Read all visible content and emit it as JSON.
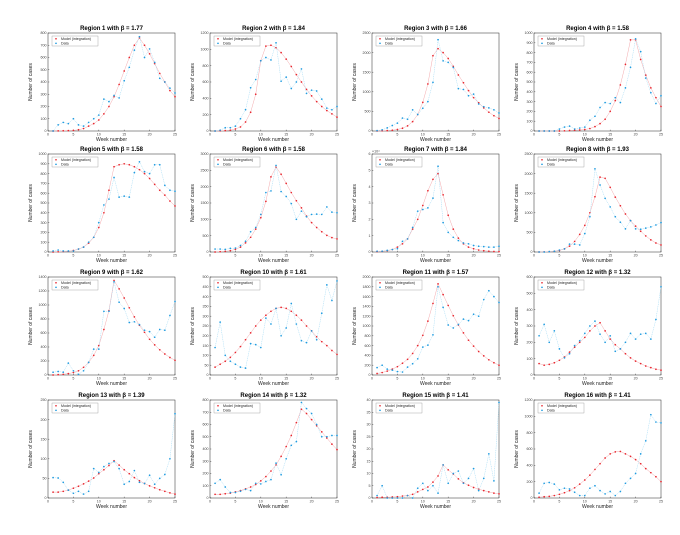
{
  "chart_data": {
    "type": "scatter",
    "layout": "4x4 grid of subplots",
    "xlabel": "Week number",
    "ylabel": "Number of cases",
    "legend": [
      "Model (integration)",
      "Data"
    ],
    "legend_placement": "top-left",
    "colors": {
      "model": "#e8262e",
      "data": "#1f9be0",
      "model_line": "#f2a0a4",
      "data_line": "#8fd2f2"
    },
    "xlim": [
      0,
      25
    ],
    "xticks": [
      0,
      5,
      10,
      15,
      20,
      25
    ],
    "panels": [
      {
        "title": "Region 1 with β = 1.77",
        "ylim": [
          0,
          800
        ],
        "ystep": 100,
        "model": [
          0,
          1,
          2,
          3,
          5,
          10,
          20,
          40,
          60,
          90,
          140,
          200,
          280,
          380,
          490,
          600,
          700,
          760,
          700,
          630,
          550,
          470,
          400,
          330,
          280
        ],
        "data": [
          0,
          50,
          70,
          60,
          100,
          50,
          40,
          70,
          100,
          130,
          260,
          240,
          290,
          270,
          410,
          520,
          660,
          770,
          600,
          670,
          560,
          430,
          400,
          350,
          310
        ]
      },
      {
        "title": "Region 2 with β = 1.84",
        "ylim": [
          0,
          1200
        ],
        "ystep": 200,
        "model": [
          0,
          2,
          5,
          10,
          25,
          50,
          110,
          230,
          450,
          860,
          1040,
          1050,
          1020,
          960,
          880,
          790,
          690,
          600,
          510,
          430,
          360,
          300,
          250,
          210,
          170
        ],
        "data": [
          0,
          10,
          40,
          40,
          60,
          150,
          260,
          530,
          630,
          860,
          900,
          870,
          1080,
          610,
          660,
          520,
          600,
          760,
          460,
          500,
          490,
          390,
          280,
          260,
          300
        ]
      },
      {
        "title": "Region 3 with β = 1.66",
        "ylim": [
          0,
          2500
        ],
        "ystep": 500,
        "model": [
          0,
          5,
          10,
          20,
          40,
          70,
          130,
          240,
          420,
          730,
          1200,
          1920,
          2100,
          2000,
          1850,
          1650,
          1430,
          1230,
          1030,
          850,
          720,
          590,
          480,
          390,
          320
        ],
        "data": [
          10,
          30,
          80,
          140,
          200,
          330,
          300,
          540,
          420,
          580,
          750,
          1240,
          2330,
          1790,
          1750,
          1620,
          1080,
          1060,
          900,
          940,
          690,
          620,
          590,
          540,
          460
        ]
      },
      {
        "title": "Region 4 with β = 1.58",
        "ylim": [
          0,
          1000
        ],
        "ystep": 100,
        "model": [
          0,
          0,
          0,
          0,
          0,
          2,
          5,
          8,
          10,
          15,
          25,
          45,
          75,
          120,
          200,
          310,
          470,
          680,
          930,
          930,
          730,
          570,
          440,
          340,
          250
        ],
        "data": [
          0,
          0,
          0,
          0,
          20,
          40,
          50,
          20,
          30,
          40,
          110,
          150,
          240,
          290,
          280,
          340,
          290,
          440,
          650,
          940,
          810,
          540,
          390,
          280,
          360
        ]
      },
      {
        "title": "Region 5 with β = 1.58",
        "ylim": [
          0,
          1000
        ],
        "ystep": 100,
        "model": [
          0,
          2,
          5,
          8,
          15,
          30,
          50,
          90,
          150,
          250,
          400,
          630,
          870,
          890,
          900,
          890,
          870,
          840,
          800,
          750,
          690,
          630,
          580,
          520,
          470
        ],
        "data": [
          10,
          20,
          10,
          10,
          10,
          30,
          50,
          100,
          150,
          300,
          480,
          540,
          760,
          560,
          570,
          560,
          810,
          920,
          820,
          800,
          890,
          890,
          680,
          630,
          620
        ]
      },
      {
        "title": "Region 6 with β = 1.58",
        "ylim": [
          0,
          3000
        ],
        "ystep": 500,
        "model": [
          0,
          10,
          20,
          40,
          80,
          150,
          280,
          450,
          700,
          1050,
          1550,
          2300,
          2600,
          2380,
          2100,
          1820,
          1570,
          1350,
          1100,
          900,
          750,
          620,
          510,
          440,
          400
        ],
        "data": [
          90,
          90,
          80,
          110,
          120,
          200,
          330,
          620,
          750,
          1150,
          1820,
          1870,
          2650,
          1850,
          1700,
          1480,
          1000,
          1250,
          1080,
          1150,
          1160,
          1150,
          1380,
          1220,
          1200
        ]
      },
      {
        "title": "Region 7 with β = 1.84",
        "ylim": [
          0,
          6
        ],
        "ystep": 1,
        "yexponent": "×10⁴",
        "model": [
          0.02,
          0.04,
          0.08,
          0.15,
          0.3,
          0.5,
          0.8,
          1.4,
          2.0,
          2.85,
          3.75,
          4.45,
          4.8,
          3.5,
          2.25,
          1.4,
          0.85,
          0.5,
          0.3,
          0.2,
          0.12,
          0.08,
          0.05,
          0.03,
          0.02
        ],
        "data": [
          0.05,
          0.05,
          0.1,
          0.15,
          0.2,
          0.65,
          0.8,
          1.5,
          2.5,
          2.6,
          2.7,
          3.3,
          5.25,
          1.8,
          1.2,
          0.9,
          0.7,
          0.55,
          0.5,
          0.4,
          0.35,
          0.33,
          0.3,
          0.3,
          0.35
        ]
      },
      {
        "title": "Region 8 with β = 1.93",
        "ylim": [
          0,
          2500
        ],
        "ystep": 500,
        "model": [
          0,
          5,
          10,
          20,
          40,
          80,
          150,
          270,
          450,
          680,
          1000,
          1410,
          1910,
          1880,
          1650,
          1400,
          1180,
          970,
          800,
          660,
          530,
          410,
          310,
          230,
          180
        ],
        "data": [
          0,
          0,
          10,
          20,
          50,
          80,
          200,
          200,
          180,
          470,
          900,
          2120,
          1710,
          1370,
          1150,
          900,
          760,
          590,
          800,
          590,
          580,
          610,
          640,
          690,
          750
        ]
      },
      {
        "title": "Region 9 with β = 1.62",
        "ylim": [
          0,
          1400
        ],
        "ystep": 200,
        "model": [
          0,
          5,
          10,
          20,
          35,
          60,
          110,
          180,
          280,
          420,
          650,
          920,
          1350,
          1230,
          1100,
          960,
          830,
          710,
          610,
          510,
          430,
          360,
          300,
          250,
          210
        ],
        "data": [
          40,
          50,
          40,
          170,
          60,
          10,
          60,
          180,
          370,
          370,
          910,
          910,
          1330,
          1040,
          950,
          750,
          760,
          720,
          640,
          620,
          540,
          650,
          640,
          850,
          1050
        ]
      },
      {
        "title": "Region 10 with β = 1.61",
        "ylim": [
          0,
          500
        ],
        "ystep": 50,
        "model": [
          40,
          55,
          70,
          90,
          115,
          145,
          180,
          215,
          250,
          280,
          305,
          325,
          340,
          345,
          340,
          325,
          305,
          280,
          250,
          225,
          195,
          170,
          150,
          125,
          105
        ],
        "data": [
          140,
          270,
          100,
          70,
          55,
          40,
          35,
          160,
          155,
          140,
          290,
          260,
          340,
          200,
          240,
          365,
          260,
          175,
          165,
          225,
          180,
          315,
          460,
          380,
          480
        ]
      },
      {
        "title": "Region 11 with β = 1.57",
        "ylim": [
          0,
          2000
        ],
        "ystep": 200,
        "model": [
          30,
          50,
          80,
          120,
          170,
          240,
          320,
          440,
          600,
          810,
          1100,
          1460,
          1860,
          1640,
          1420,
          1210,
          1020,
          860,
          710,
          590,
          480,
          390,
          310,
          250,
          200
        ],
        "data": [
          150,
          200,
          120,
          100,
          70,
          60,
          160,
          230,
          330,
          570,
          610,
          820,
          1800,
          1380,
          1020,
          960,
          1030,
          1140,
          1110,
          1240,
          1200,
          1540,
          1720,
          1600,
          1480
        ]
      },
      {
        "title": "Region 12 with β = 1.32",
        "ylim": [
          0,
          600
        ],
        "ystep": 100,
        "model": [
          70,
          60,
          65,
          75,
          90,
          110,
          140,
          170,
          200,
          230,
          270,
          300,
          320,
          270,
          220,
          185,
          160,
          130,
          105,
          85,
          70,
          55,
          45,
          35,
          30
        ],
        "data": [
          240,
          310,
          200,
          270,
          160,
          105,
          130,
          180,
          210,
          255,
          300,
          330,
          250,
          200,
          240,
          145,
          160,
          200,
          255,
          220,
          250,
          255,
          220,
          340,
          540
        ]
      },
      {
        "title": "Region 13 with β = 1.39",
        "ylim": [
          0,
          250
        ],
        "ystep": 50,
        "model": [
          15,
          15,
          17,
          20,
          25,
          30,
          36,
          43,
          51,
          62,
          72,
          83,
          95,
          84,
          72,
          62,
          52,
          44,
          37,
          31,
          26,
          21,
          17,
          13,
          10
        ],
        "data": [
          52,
          51,
          40,
          20,
          12,
          17,
          10,
          17,
          75,
          65,
          80,
          88,
          93,
          75,
          35,
          42,
          70,
          40,
          37,
          58,
          35,
          50,
          60,
          100,
          215
        ]
      },
      {
        "title": "Region 14 with β = 1.32",
        "ylim": [
          0,
          800
        ],
        "ystep": 100,
        "model": [
          30,
          30,
          35,
          40,
          50,
          60,
          75,
          90,
          110,
          140,
          175,
          220,
          270,
          340,
          420,
          510,
          615,
          725,
          690,
          640,
          590,
          540,
          490,
          440,
          395
        ],
        "data": [
          120,
          150,
          90,
          45,
          45,
          55,
          70,
          60,
          120,
          115,
          135,
          150,
          285,
          190,
          320,
          430,
          460,
          780,
          730,
          690,
          600,
          500,
          500,
          510,
          510
        ]
      },
      {
        "title": "Region 15 with β = 1.41",
        "ylim": [
          0,
          40
        ],
        "ystep": 5,
        "model": [
          0.2,
          0.3,
          0.3,
          0.4,
          0.5,
          0.8,
          1,
          1.5,
          2.5,
          3.5,
          4.5,
          6.5,
          9,
          13.5,
          11.5,
          9.8,
          7.8,
          6.2,
          5.2,
          4.3,
          3.6,
          3,
          2.5,
          2,
          1.7
        ],
        "data": [
          1,
          5,
          0,
          0,
          0,
          0,
          1,
          0,
          4,
          6,
          3,
          5,
          2,
          13.5,
          6,
          10,
          11,
          6,
          8,
          12,
          3,
          8,
          18,
          7,
          39
        ]
      },
      {
        "title": "Region 16 with β = 1.41",
        "ylim": [
          0,
          1200
        ],
        "ystep": 200,
        "model": [
          10,
          15,
          20,
          30,
          45,
          65,
          90,
          125,
          170,
          220,
          280,
          350,
          420,
          490,
          540,
          565,
          570,
          540,
          510,
          470,
          420,
          360,
          310,
          260,
          200
        ],
        "data": [
          60,
          180,
          190,
          170,
          100,
          120,
          110,
          70,
          30,
          30,
          120,
          150,
          90,
          50,
          80,
          30,
          80,
          180,
          240,
          300,
          540,
          700,
          1020,
          930,
          920
        ]
      }
    ]
  }
}
